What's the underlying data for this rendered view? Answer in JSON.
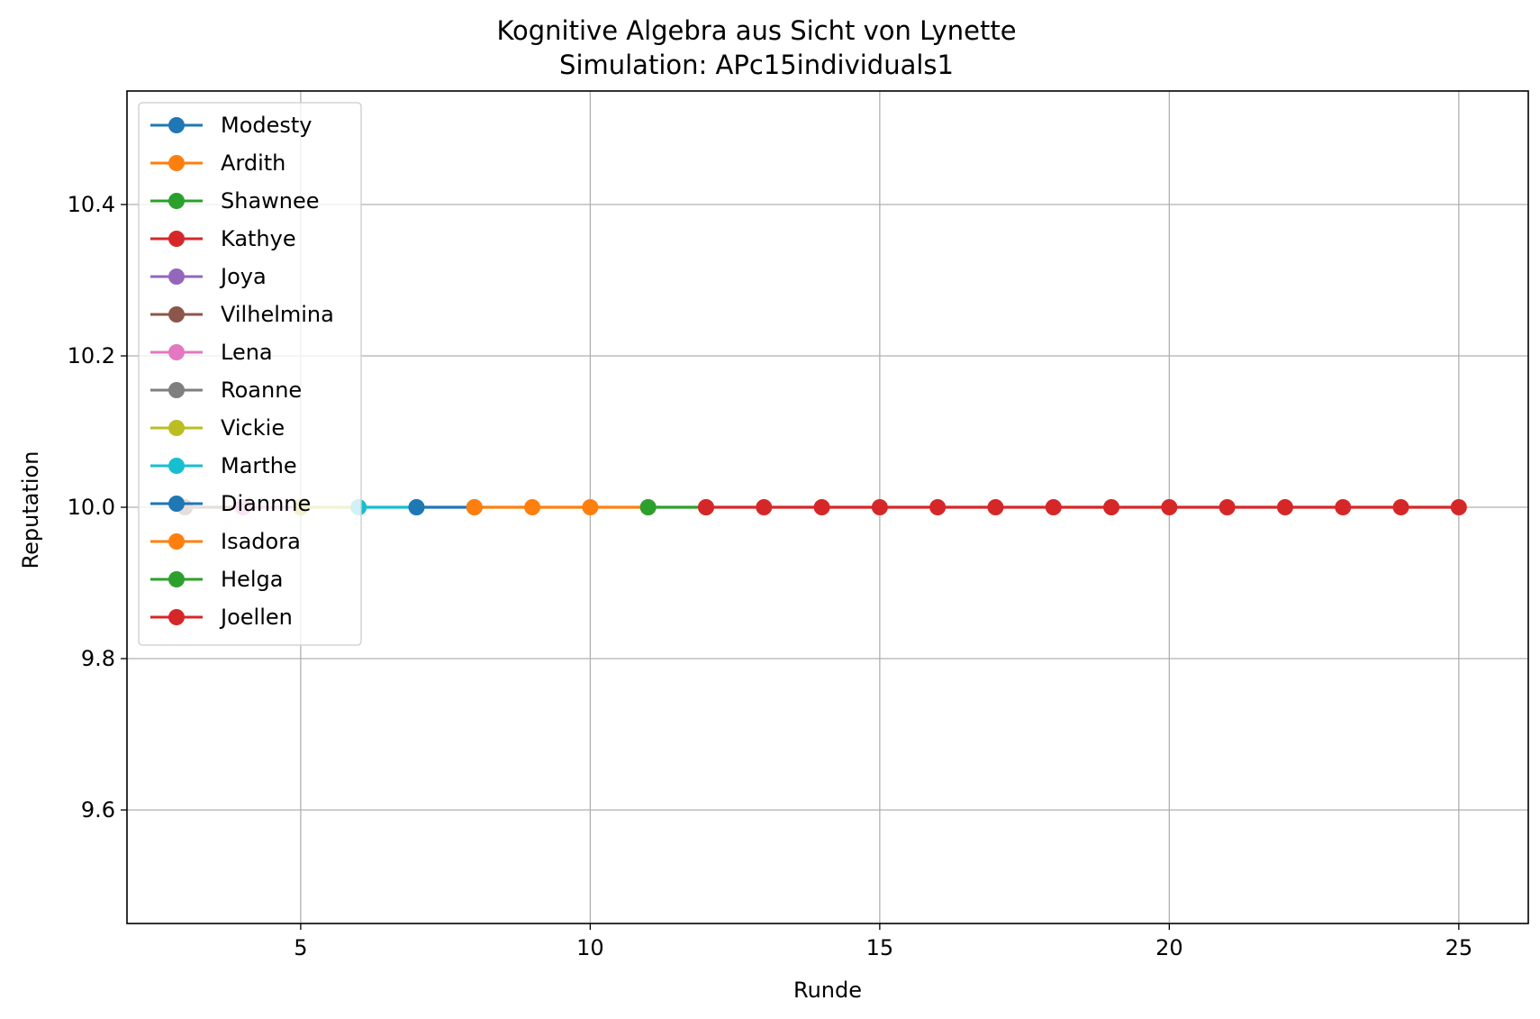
{
  "chart_data": {
    "type": "line",
    "title": "Kognitive Algebra aus Sicht von Lynette",
    "subtitle": "Simulation: APc15individuals1",
    "xlabel": "Runde",
    "ylabel": "Reputation",
    "xlim": [
      2,
      26.2
    ],
    "ylim": [
      9.45,
      10.55
    ],
    "xticks": [
      5,
      10,
      15,
      20,
      25
    ],
    "xtick_labels": [
      "5",
      "10",
      "15",
      "20",
      "25"
    ],
    "yticks": [
      9.6,
      9.8,
      10.0,
      10.2,
      10.4
    ],
    "ytick_labels": [
      "9.6",
      "9.8",
      "10.0",
      "10.2",
      "10.4"
    ],
    "grid": true,
    "legend_position": "upper-left",
    "series": [
      {
        "name": "Modesty",
        "color": "#1f77b4",
        "x": [],
        "y": []
      },
      {
        "name": "Ardith",
        "color": "#ff7f0e",
        "x": [],
        "y": []
      },
      {
        "name": "Shawnee",
        "color": "#2ca02c",
        "x": [],
        "y": []
      },
      {
        "name": "Kathye",
        "color": "#d62728",
        "x": [],
        "y": []
      },
      {
        "name": "Joya",
        "color": "#9467bd",
        "x": [],
        "y": []
      },
      {
        "name": "Vilhelmina",
        "color": "#8c564b",
        "x": [
          3,
          4
        ],
        "y": [
          10.0,
          10.0
        ]
      },
      {
        "name": "Lena",
        "color": "#e377c2",
        "x": [
          4,
          5
        ],
        "y": [
          10.0,
          10.0
        ]
      },
      {
        "name": "Roanne",
        "color": "#7f7f7f",
        "x": [],
        "y": []
      },
      {
        "name": "Vickie",
        "color": "#bcbd22",
        "x": [
          5,
          6
        ],
        "y": [
          10.0,
          10.0
        ]
      },
      {
        "name": "Marthe",
        "color": "#17becf",
        "x": [
          6,
          7
        ],
        "y": [
          10.0,
          10.0
        ]
      },
      {
        "name": "Diannne",
        "color": "#1f77b4",
        "x": [
          7,
          8
        ],
        "y": [
          10.0,
          10.0
        ]
      },
      {
        "name": "Isadora",
        "color": "#ff7f0e",
        "x": [
          8,
          9,
          10,
          11
        ],
        "y": [
          10.0,
          10.0,
          10.0,
          10.0
        ]
      },
      {
        "name": "Helga",
        "color": "#2ca02c",
        "x": [
          11,
          12
        ],
        "y": [
          10.0,
          10.0
        ]
      },
      {
        "name": "Joellen",
        "color": "#d62728",
        "x": [
          12,
          13,
          14,
          15,
          16,
          17,
          18,
          19,
          20,
          21,
          22,
          23,
          24,
          25
        ],
        "y": [
          10.0,
          10.0,
          10.0,
          10.0,
          10.0,
          10.0,
          10.0,
          10.0,
          10.0,
          10.0,
          10.0,
          10.0,
          10.0,
          10.0
        ]
      }
    ]
  }
}
